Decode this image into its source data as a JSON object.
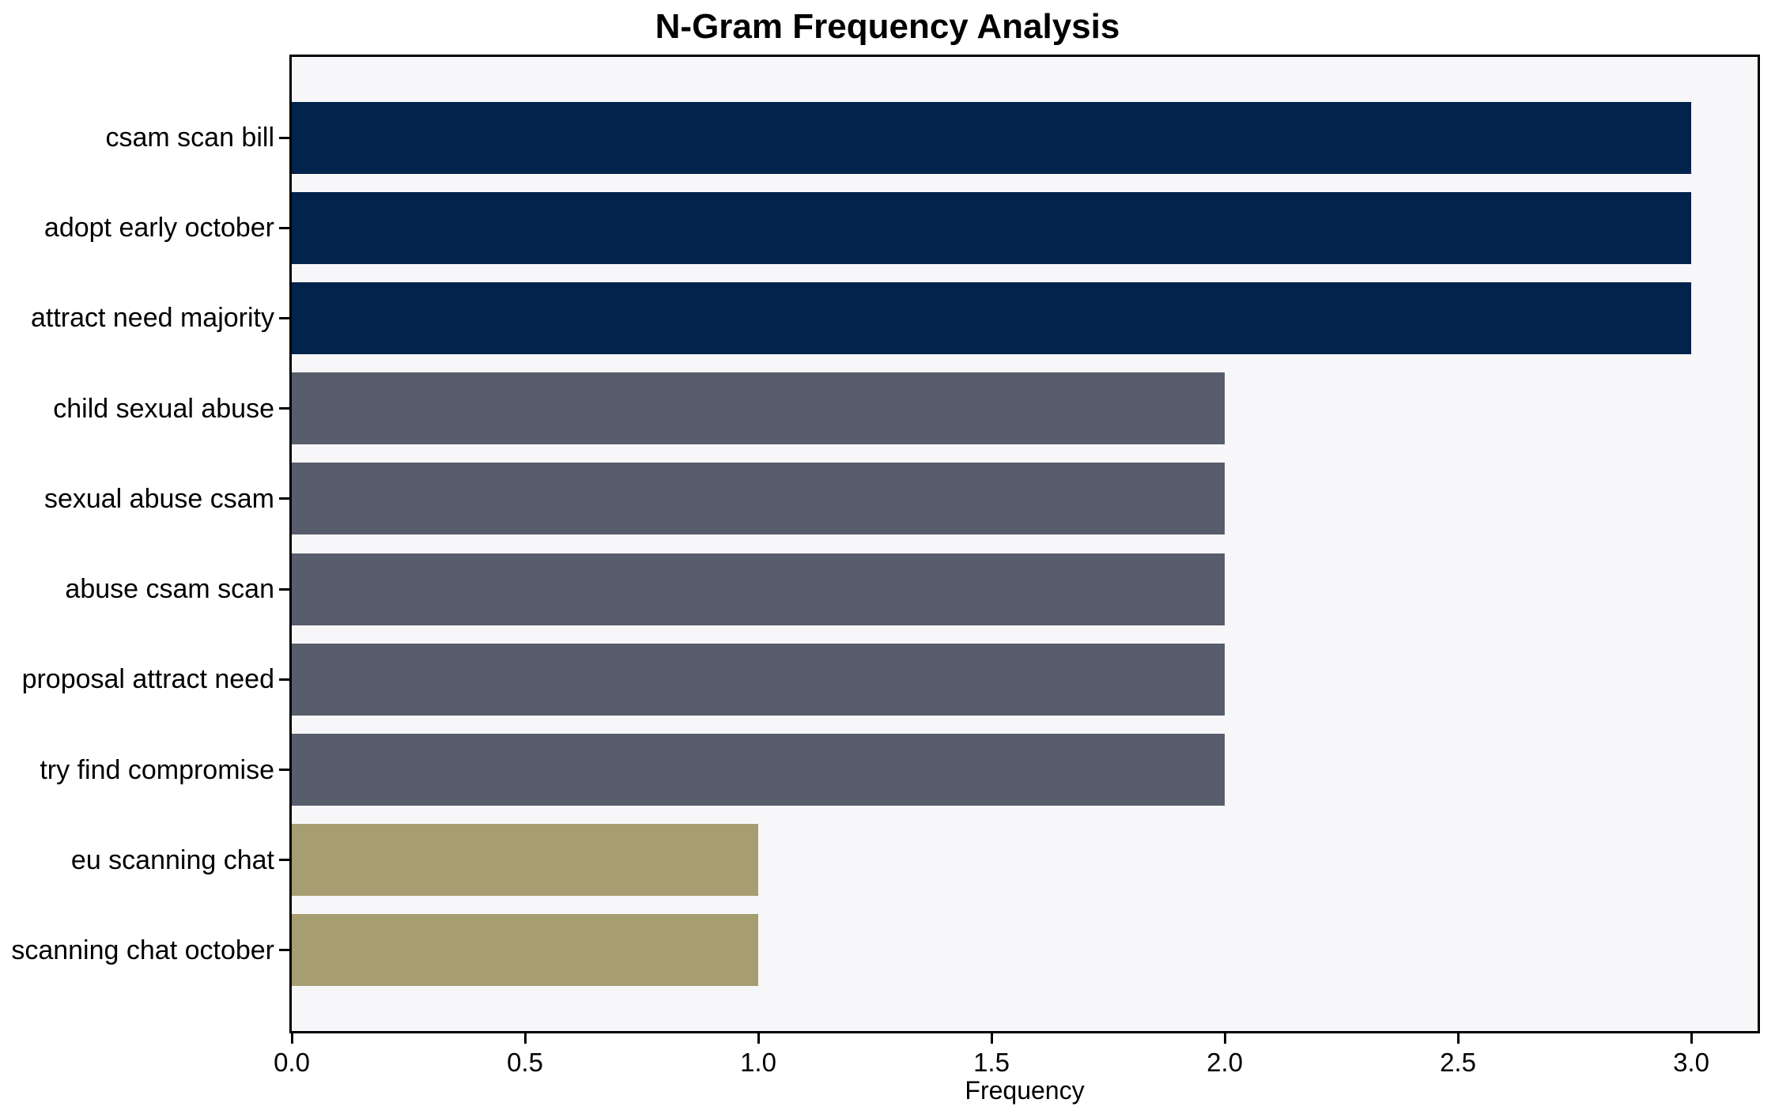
{
  "chart_data": {
    "type": "bar",
    "orientation": "horizontal",
    "title": "N-Gram Frequency Analysis",
    "xlabel": "Frequency",
    "ylabel": "",
    "categories": [
      "csam scan bill",
      "adopt early october",
      "attract need majority",
      "child sexual abuse",
      "sexual abuse csam",
      "abuse csam scan",
      "proposal attract need",
      "try find compromise",
      "eu scanning chat",
      "scanning chat october"
    ],
    "values": [
      3,
      3,
      3,
      2,
      2,
      2,
      2,
      2,
      1,
      1
    ],
    "bar_colors": [
      "#02234c",
      "#02234c",
      "#02234c",
      "#575d6b",
      "#575d6b",
      "#575d6b",
      "#575d6b",
      "#575d6b",
      "#a69d71",
      "#a69d71"
    ],
    "x_ticks": [
      {
        "label": "0.0",
        "value": 0.0
      },
      {
        "label": "0.5",
        "value": 0.5
      },
      {
        "label": "1.0",
        "value": 1.0
      },
      {
        "label": "1.5",
        "value": 1.5
      },
      {
        "label": "2.0",
        "value": 2.0
      },
      {
        "label": "2.5",
        "value": 2.5
      },
      {
        "label": "3.0",
        "value": 3.0
      }
    ],
    "xlim": [
      0,
      3.14
    ],
    "grid": false,
    "legend": "none",
    "colors": {
      "freq_3": "#02234c",
      "freq_2": "#575d6b",
      "freq_1": "#a69d71",
      "plot_background": "#f7f7f9",
      "figure_background": "#ffffff",
      "spine": "#000000"
    }
  }
}
